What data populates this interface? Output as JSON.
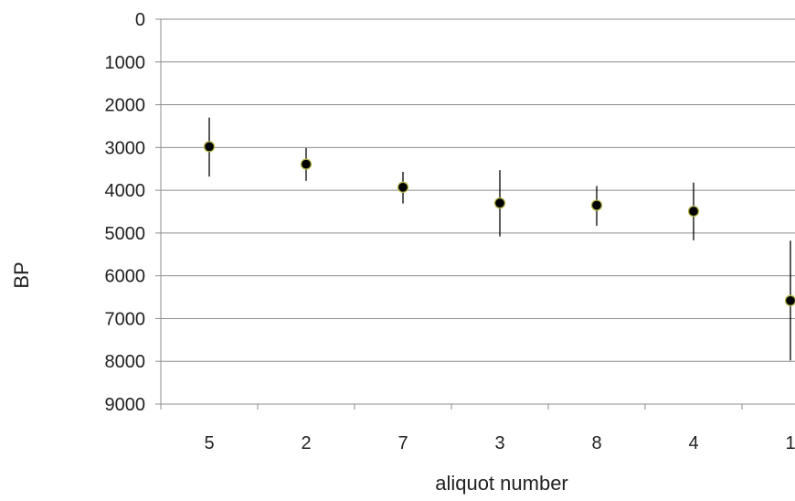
{
  "chart_data": {
    "type": "scatter",
    "title": "",
    "xlabel": "aliquot number",
    "ylabel": "BP",
    "y_reversed": true,
    "ylim": [
      0,
      9000
    ],
    "yticks": [
      0,
      1000,
      2000,
      3000,
      4000,
      5000,
      6000,
      7000,
      8000,
      9000
    ],
    "ytick_labels": [
      "0",
      "1000",
      "2000",
      "3000",
      "4000",
      "5000",
      "6000",
      "7000",
      "8000",
      "9000"
    ],
    "categories": [
      "5",
      "2",
      "7",
      "3",
      "8",
      "4",
      "1"
    ],
    "values": [
      2980,
      3390,
      3930,
      4300,
      4350,
      4490,
      6580
    ],
    "error_low": [
      2300,
      3010,
      3570,
      3530,
      3900,
      3820,
      5180
    ],
    "error_high": [
      3680,
      3780,
      4310,
      5080,
      4830,
      5170,
      7980
    ],
    "grid": true,
    "marker_color": "#000000",
    "marker_edge_color": "#b5b64a",
    "gridline_color": "#8c8c8c"
  }
}
